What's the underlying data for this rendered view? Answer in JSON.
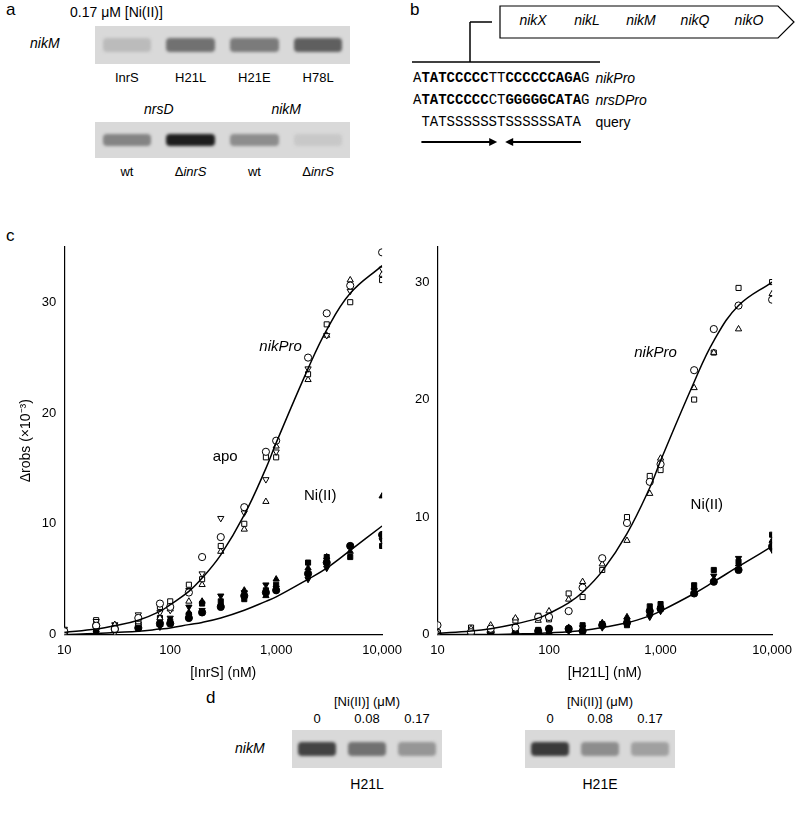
{
  "panels": {
    "a": {
      "letter": "a",
      "condition": "0.17 μM [Ni(II)]",
      "gel_top": {
        "row_label": "nikM",
        "lanes": [
          "InrS",
          "H21L",
          "H21E",
          "H78L"
        ],
        "band_intensity": [
          0.15,
          0.55,
          0.5,
          0.65
        ]
      },
      "gel_bottom": {
        "groups": [
          {
            "label": "nrsD",
            "lanes": [
              "wt",
              "ΔinrS"
            ],
            "band_intensity": [
              0.45,
              1.0
            ]
          },
          {
            "label": "nikM",
            "lanes": [
              "wt",
              "ΔinrS"
            ],
            "band_intensity": [
              0.4,
              0.08
            ]
          }
        ]
      }
    },
    "b": {
      "letter": "b",
      "operon": [
        "nikX",
        "nikL",
        "nikM",
        "nikQ",
        "nikO"
      ],
      "sequences": [
        {
          "label": "nikPro",
          "segments": [
            {
              "text": "A",
              "bold": false
            },
            {
              "text": "TATCCCCC",
              "bold": true
            },
            {
              "text": "TT",
              "bold": false
            },
            {
              "text": "CCCCCCAGA",
              "bold": true
            },
            {
              "text": "G",
              "bold": false
            }
          ]
        },
        {
          "label": "nrsDPro",
          "segments": [
            {
              "text": "A",
              "bold": false
            },
            {
              "text": "TATCCCCC",
              "bold": true
            },
            {
              "text": "CT",
              "bold": false
            },
            {
              "text": "GGGGGCATA",
              "bold": true
            },
            {
              "text": "G",
              "bold": false
            }
          ]
        }
      ],
      "query": {
        "label": "query",
        "text": "TATSSSSSSTSSSSSSATA"
      }
    },
    "c": {
      "letter": "c"
    },
    "d": {
      "letter": "d",
      "row_label": "nikM",
      "header": "[Ni(II)] (μM)",
      "gels": [
        {
          "label": "H21L",
          "lanes": [
            0,
            0.08,
            0.17
          ],
          "band_intensity": [
            0.8,
            0.55,
            0.35
          ]
        },
        {
          "label": "H21E",
          "lanes": [
            0,
            0.08,
            0.17
          ],
          "band_intensity": [
            0.85,
            0.4,
            0.3
          ]
        }
      ]
    }
  },
  "chart_data": [
    {
      "type": "scatter",
      "x_label": "[InrS] (nM)",
      "y_label": "Δrobs (×10⁻³)",
      "log": "x",
      "grid": false,
      "xlim": [
        10,
        10000
      ],
      "xticks": [
        10,
        100,
        {
          "value": 1000,
          "label": "1,000"
        },
        {
          "value": 10000,
          "label": "10,000"
        }
      ],
      "ylim": [
        0,
        35
      ],
      "yticks": [
        0,
        10,
        20,
        30
      ],
      "x": [
        10,
        20,
        30,
        50,
        80,
        100,
        150,
        200,
        300,
        500,
        800,
        1000,
        2000,
        3000,
        5000,
        10000
      ],
      "series": [
        {
          "type": "scatter",
          "marker": "circle-open",
          "color": "#000000",
          "values": [
            0.3,
            0.8,
            0.5,
            1.5,
            2.8,
            2.5,
            3.8,
            7,
            8.8,
            11.5,
            16.5,
            17.5,
            25,
            29,
            31.5,
            34.5
          ]
        },
        {
          "type": "scatter",
          "marker": "triangle-down-open",
          "color": "#000000",
          "values": [
            0.5,
            1.2,
            0.2,
            1.8,
            2,
            2.2,
            4,
            5.5,
            10.5,
            11,
            14,
            16.5,
            24,
            27,
            31,
            33
          ]
        },
        {
          "type": "scatter",
          "marker": "square-open",
          "color": "#000000",
          "values": [
            0.2,
            1.3,
            0.6,
            1.2,
            2.5,
            3,
            4.5,
            5,
            8,
            10,
            16,
            16,
            23.5,
            28,
            30,
            32
          ]
        },
        {
          "type": "scatter",
          "marker": "triangle-open",
          "color": "#000000",
          "values": [
            0.1,
            0.6,
            0.9,
            1,
            1.5,
            2.3,
            3,
            4.5,
            7.5,
            9.5,
            12,
            17,
            23,
            27,
            32,
            32.5
          ]
        },
        {
          "type": "scatter",
          "marker": "circle",
          "color": "#000000",
          "values": [
            0.2,
            0.8,
            0.5,
            0.6,
            1,
            1,
            1.5,
            2,
            2.5,
            3.5,
            3.8,
            4,
            5.5,
            6.5,
            8,
            9
          ]
        },
        {
          "type": "scatter",
          "marker": "triangle",
          "color": "#000000",
          "values": [
            0.3,
            0.4,
            0.7,
            1.2,
            0.9,
            2.5,
            2,
            3,
            2.8,
            4,
            3.5,
            5,
            6,
            7,
            7.5,
            12.5
          ]
        },
        {
          "type": "scatter",
          "marker": "triangle-down",
          "color": "#000000",
          "values": [
            0.1,
            0.5,
            0.9,
            0.8,
            0.7,
            1.5,
            2.5,
            2.2,
            3.5,
            3.8,
            4.5,
            4.2,
            5,
            6,
            8,
            8.5
          ]
        },
        {
          "type": "scatter",
          "marker": "square",
          "color": "#000000",
          "values": [
            0.4,
            0.3,
            0.6,
            1,
            1.5,
            1.2,
            1.8,
            2.8,
            3,
            3.2,
            4,
            4.5,
            6.5,
            7,
            7,
            8
          ]
        },
        {
          "type": "line",
          "marker": "none",
          "line_style": "solid",
          "color": "#000000",
          "values": [
            0.2,
            0.5,
            0.8,
            1.3,
            2.1,
            2.7,
            3.9,
            5.1,
            7.2,
            10.8,
            15,
            17.3,
            24,
            27.5,
            30.8,
            33.3
          ]
        },
        {
          "type": "line",
          "marker": "none",
          "line_style": "solid",
          "color": "#000000",
          "values": [
            0,
            0.1,
            0.2,
            0.3,
            0.5,
            0.6,
            0.9,
            1.1,
            1.5,
            2.2,
            3,
            3.4,
            5,
            6,
            7.6,
            9.8
          ]
        }
      ],
      "annotations": [
        {
          "text": "nikPro",
          "x": 1100,
          "y": 26
        },
        {
          "text": "apo",
          "x": 330,
          "y": 16
        },
        {
          "text": "Ni(II)",
          "x": 2600,
          "y": 12.5
        }
      ]
    },
    {
      "type": "scatter",
      "x_label": "[H21L] (nM)",
      "log": "x",
      "grid": false,
      "xlim": [
        10,
        10000
      ],
      "xticks": [
        10,
        100,
        {
          "value": 1000,
          "label": "1,000"
        },
        {
          "value": 10000,
          "label": "10,000"
        }
      ],
      "ylim": [
        0,
        33
      ],
      "yticks": [
        0,
        10,
        20,
        30
      ],
      "x": [
        10,
        20,
        30,
        50,
        80,
        100,
        150,
        200,
        300,
        500,
        800,
        1000,
        2000,
        3000,
        5000,
        10000
      ],
      "series": [
        {
          "type": "scatter",
          "marker": "circle-open",
          "color": "#000000",
          "values": [
            0.8,
            0.2,
            0.5,
            0.6,
            1.5,
            1.5,
            2,
            4,
            6.5,
            9.5,
            13,
            14.5,
            22.5,
            26,
            28,
            28.5
          ]
        },
        {
          "type": "scatter",
          "marker": "triangle-open",
          "color": "#000000",
          "values": [
            0.1,
            0.5,
            0.8,
            1.4,
            1.2,
            2,
            3,
            4.5,
            6,
            8,
            12,
            15,
            21,
            24,
            26,
            29
          ]
        },
        {
          "type": "scatter",
          "marker": "square-open",
          "color": "#000000",
          "values": [
            0.2,
            0.6,
            0.4,
            1.2,
            1.6,
            1.3,
            3.5,
            3.2,
            5.5,
            10,
            13.5,
            14,
            20,
            24,
            29.5,
            30
          ]
        },
        {
          "type": "scatter",
          "marker": "circle",
          "color": "#000000",
          "values": [
            0.1,
            0,
            0.2,
            0.1,
            0.3,
            0.5,
            0.5,
            0.3,
            0.8,
            1,
            2,
            2.2,
            3.5,
            4.5,
            5.5,
            7.5
          ]
        },
        {
          "type": "scatter",
          "marker": "triangle",
          "color": "#000000",
          "values": [
            0,
            0.2,
            0,
            0.3,
            0.2,
            0.2,
            0.6,
            0.5,
            1,
            1.5,
            1.8,
            2.5,
            4,
            4.6,
            6,
            8
          ]
        },
        {
          "type": "scatter",
          "marker": "triangle-down",
          "color": "#000000",
          "values": [
            0.2,
            0.1,
            0.1,
            0.2,
            0,
            0.4,
            0.3,
            0.6,
            0.6,
            1.2,
            1.5,
            2,
            3.8,
            5,
            6.5,
            7.2
          ]
        },
        {
          "type": "scatter",
          "marker": "square",
          "color": "#000000",
          "values": [
            0,
            0.3,
            0.3,
            0,
            0.4,
            0.1,
            0.4,
            0.8,
            0.9,
            0.8,
            2.4,
            2.6,
            4.2,
            5.5,
            6.2,
            8.5
          ]
        },
        {
          "type": "line",
          "marker": "none",
          "line_style": "solid",
          "color": "#000000",
          "values": [
            0.1,
            0.3,
            0.5,
            0.9,
            1.4,
            1.8,
            2.7,
            3.6,
            5.4,
            8.6,
            12.5,
            14.8,
            21.5,
            25,
            28,
            30
          ]
        },
        {
          "type": "line",
          "marker": "none",
          "line_style": "solid",
          "color": "#000000",
          "values": [
            0,
            0,
            0,
            0.05,
            0.1,
            0.15,
            0.25,
            0.35,
            0.6,
            1,
            1.6,
            2,
            3.5,
            4.5,
            5.8,
            7.5
          ]
        }
      ],
      "annotations": [
        {
          "text": "nikPro",
          "x": 900,
          "y": 24
        },
        {
          "text": "Ni(II)",
          "x": 2600,
          "y": 11
        }
      ]
    }
  ]
}
